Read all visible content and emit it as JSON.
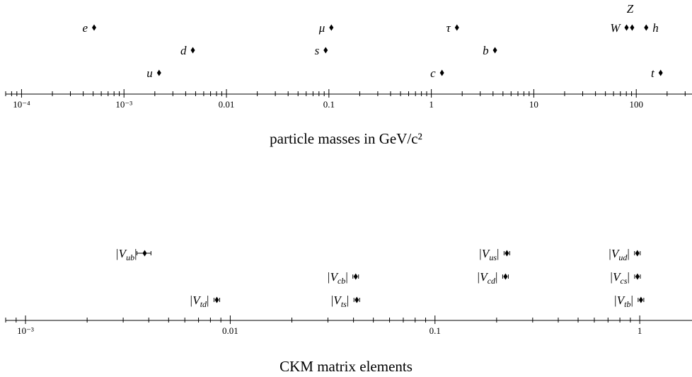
{
  "chart_data": [
    {
      "type": "scatter",
      "scale": "log",
      "xlim": [
        7e-05,
        350
      ],
      "title": "particle masses in GeV/c²",
      "tick_labels": [
        {
          "value": 0.0001,
          "label": "10⁻⁴"
        },
        {
          "value": 0.001,
          "label": "10⁻³"
        },
        {
          "value": 0.01,
          "label": "0.01"
        },
        {
          "value": 0.1,
          "label": "0.1"
        },
        {
          "value": 1,
          "label": "1"
        },
        {
          "value": 10,
          "label": "10"
        },
        {
          "value": 100,
          "label": "100"
        }
      ],
      "points": [
        {
          "label": "e",
          "value": 0.000511,
          "row": 3
        },
        {
          "label": "μ",
          "value": 0.1057,
          "row": 3
        },
        {
          "label": "τ",
          "value": 1.777,
          "row": 3
        },
        {
          "label": "W",
          "value": 80.4,
          "row": 3
        },
        {
          "label": "Z",
          "value": 91.2,
          "row": 3
        },
        {
          "label": "h",
          "value": 125.1,
          "row": 3
        },
        {
          "label": "d",
          "value": 0.0047,
          "row": 2
        },
        {
          "label": "s",
          "value": 0.093,
          "row": 2
        },
        {
          "label": "b",
          "value": 4.18,
          "row": 2
        },
        {
          "label": "u",
          "value": 0.0022,
          "row": 1
        },
        {
          "label": "c",
          "value": 1.27,
          "row": 1
        },
        {
          "label": "t",
          "value": 173,
          "row": 1
        }
      ]
    },
    {
      "type": "scatter",
      "scale": "log",
      "xlim": [
        0.0008,
        1.8
      ],
      "title": "CKM matrix elements",
      "tick_labels": [
        {
          "value": 0.001,
          "label": "10⁻³"
        },
        {
          "value": 0.01,
          "label": "0.01"
        },
        {
          "value": 0.1,
          "label": "0.1"
        },
        {
          "value": 1,
          "label": "1"
        }
      ],
      "points": [
        {
          "label": "|V",
          "sub": "ub",
          "value": 0.00382,
          "err": [
            0.0035,
            0.0041
          ],
          "row": 3
        },
        {
          "label": "|V",
          "sub": "us",
          "value": 0.2245,
          "row": 3
        },
        {
          "label": "|V",
          "sub": "ud",
          "value": 0.9737,
          "row": 3
        },
        {
          "label": "|V",
          "sub": "cb",
          "value": 0.041,
          "row": 2
        },
        {
          "label": "|V",
          "sub": "cd",
          "value": 0.221,
          "row": 2
        },
        {
          "label": "|V",
          "sub": "cs",
          "value": 0.975,
          "row": 2
        },
        {
          "label": "|V",
          "sub": "td",
          "value": 0.0086,
          "row": 1
        },
        {
          "label": "|V",
          "sub": "ts",
          "value": 0.0415,
          "row": 1
        },
        {
          "label": "|V",
          "sub": "tb",
          "value": 1.014,
          "row": 1
        }
      ]
    }
  ]
}
